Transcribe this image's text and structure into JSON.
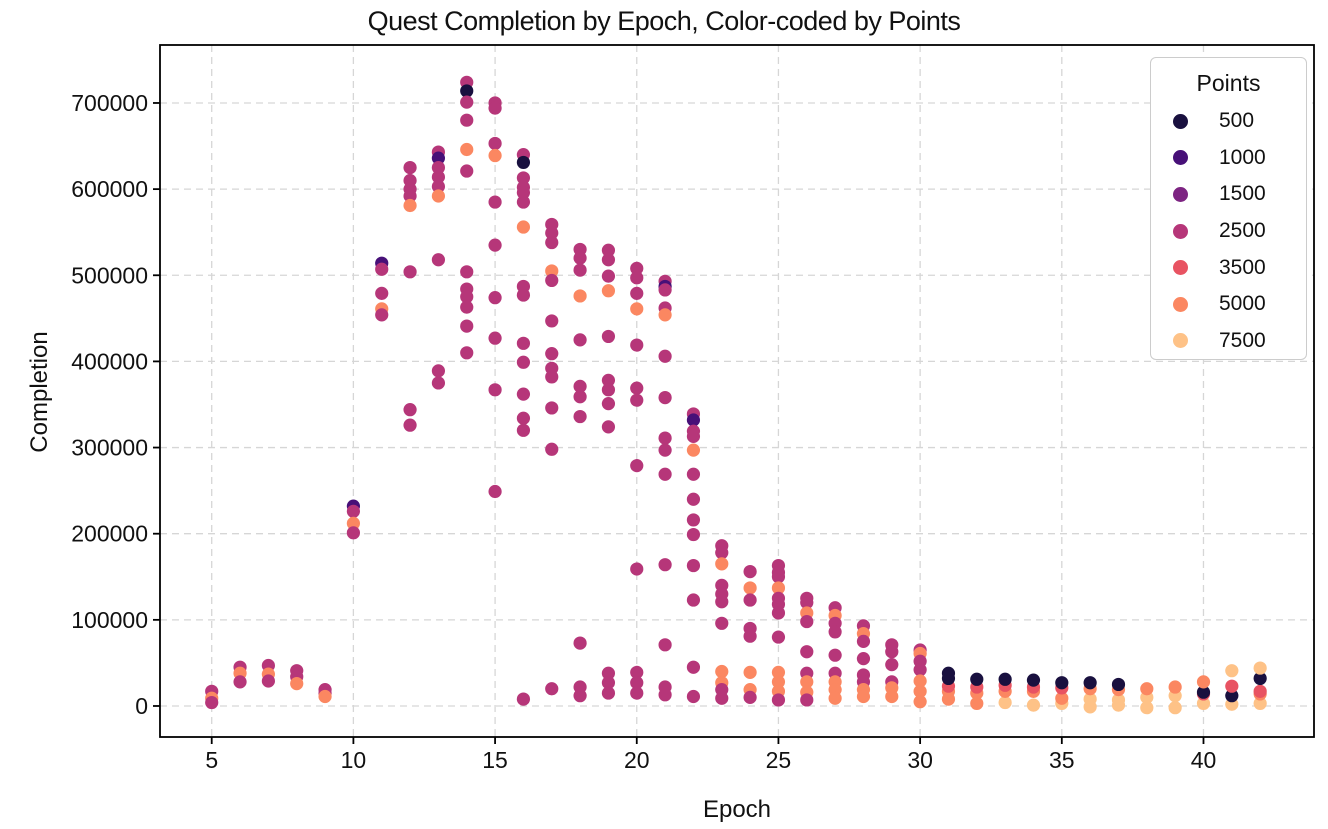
{
  "title": "Quest Completion by Epoch, Color-coded by Points",
  "xlabel": "Epoch",
  "ylabel": "Completion",
  "legend": {
    "title": "Points",
    "entries": [
      {
        "label": "500",
        "color": "#19103f"
      },
      {
        "label": "1000",
        "color": "#471078"
      },
      {
        "label": "1500",
        "color": "#7d2482"
      },
      {
        "label": "2500",
        "color": "#b63679"
      },
      {
        "label": "3500",
        "color": "#e85362"
      },
      {
        "label": "5000",
        "color": "#fb8761"
      },
      {
        "label": "7500",
        "color": "#fec287"
      }
    ]
  },
  "axes": {
    "x_ticks": [
      5,
      10,
      15,
      20,
      25,
      30,
      35,
      40
    ],
    "y_ticks": [
      0,
      100000,
      200000,
      300000,
      400000,
      500000,
      600000,
      700000
    ],
    "xlim": [
      3.175,
      43.9
    ],
    "ylim": [
      -36000,
      767300
    ],
    "grid": true,
    "grid_color": "#d6d6d6"
  },
  "chart_data": {
    "type": "scatter",
    "title": "Quest Completion by Epoch, Color-coded by Points",
    "xlabel": "Epoch",
    "ylabel": "Completion",
    "legend_title": "Points",
    "color_map": {
      "500": "#19103f",
      "1000": "#471078",
      "1500": "#7d2482",
      "2500": "#b63679",
      "3500": "#e85362",
      "5000": "#fb8761",
      "7500": "#fec287"
    },
    "format": [
      "epoch",
      "completion",
      "points"
    ],
    "points": [
      [
        5,
        17000,
        2500
      ],
      [
        5,
        9000,
        5000
      ],
      [
        5,
        4000,
        2500
      ],
      [
        6,
        45000,
        2500
      ],
      [
        6,
        38000,
        5000
      ],
      [
        6,
        28000,
        2500
      ],
      [
        7,
        47000,
        2500
      ],
      [
        7,
        37000,
        5000
      ],
      [
        7,
        29000,
        2500
      ],
      [
        8,
        41000,
        2500
      ],
      [
        8,
        34000,
        2500
      ],
      [
        8,
        26000,
        5000
      ],
      [
        9,
        19000,
        2500
      ],
      [
        9,
        15000,
        2500
      ],
      [
        9,
        11000,
        5000
      ],
      [
        10,
        232000,
        1000
      ],
      [
        10,
        226000,
        2500
      ],
      [
        10,
        212000,
        5000
      ],
      [
        10,
        201000,
        2500
      ],
      [
        11,
        514000,
        1000
      ],
      [
        11,
        507000,
        2500
      ],
      [
        11,
        479000,
        2500
      ],
      [
        11,
        461000,
        5000
      ],
      [
        11,
        454000,
        2500
      ],
      [
        12,
        625000,
        2500
      ],
      [
        12,
        610000,
        2500
      ],
      [
        12,
        600000,
        2500
      ],
      [
        12,
        592000,
        2500
      ],
      [
        12,
        581000,
        5000
      ],
      [
        12,
        504000,
        2500
      ],
      [
        12,
        344000,
        2500
      ],
      [
        12,
        326000,
        2500
      ],
      [
        13,
        643000,
        2500
      ],
      [
        13,
        636000,
        1000
      ],
      [
        13,
        625000,
        2500
      ],
      [
        13,
        614000,
        2500
      ],
      [
        13,
        603000,
        2500
      ],
      [
        13,
        592000,
        5000
      ],
      [
        13,
        518000,
        2500
      ],
      [
        13,
        389000,
        2500
      ],
      [
        13,
        375000,
        2500
      ],
      [
        14,
        724000,
        2500
      ],
      [
        14,
        714000,
        500
      ],
      [
        14,
        701000,
        2500
      ],
      [
        14,
        680000,
        2500
      ],
      [
        14,
        646000,
        5000
      ],
      [
        14,
        621000,
        2500
      ],
      [
        14,
        504000,
        2500
      ],
      [
        14,
        484000,
        2500
      ],
      [
        14,
        475000,
        2500
      ],
      [
        14,
        463000,
        2500
      ],
      [
        14,
        441000,
        2500
      ],
      [
        14,
        410000,
        2500
      ],
      [
        15,
        700000,
        2500
      ],
      [
        15,
        694000,
        2500
      ],
      [
        15,
        653000,
        2500
      ],
      [
        15,
        639000,
        5000
      ],
      [
        15,
        585000,
        2500
      ],
      [
        15,
        535000,
        2500
      ],
      [
        15,
        474000,
        2500
      ],
      [
        15,
        427000,
        2500
      ],
      [
        15,
        367000,
        2500
      ],
      [
        15,
        249000,
        2500
      ],
      [
        16,
        640000,
        2500
      ],
      [
        16,
        631000,
        500
      ],
      [
        16,
        613000,
        2500
      ],
      [
        16,
        602000,
        2500
      ],
      [
        16,
        596000,
        2500
      ],
      [
        16,
        585000,
        2500
      ],
      [
        16,
        556000,
        5000
      ],
      [
        16,
        487000,
        2500
      ],
      [
        16,
        477000,
        2500
      ],
      [
        16,
        421000,
        2500
      ],
      [
        16,
        399000,
        2500
      ],
      [
        16,
        362000,
        2500
      ],
      [
        16,
        334000,
        2500
      ],
      [
        16,
        320000,
        2500
      ],
      [
        16,
        8000,
        2500
      ],
      [
        17,
        559000,
        2500
      ],
      [
        17,
        549000,
        2500
      ],
      [
        17,
        538000,
        2500
      ],
      [
        17,
        505000,
        5000
      ],
      [
        17,
        494000,
        2500
      ],
      [
        17,
        447000,
        2500
      ],
      [
        17,
        409000,
        2500
      ],
      [
        17,
        392000,
        2500
      ],
      [
        17,
        382000,
        2500
      ],
      [
        17,
        346000,
        2500
      ],
      [
        17,
        298000,
        2500
      ],
      [
        17,
        20000,
        2500
      ],
      [
        18,
        530000,
        2500
      ],
      [
        18,
        520000,
        2500
      ],
      [
        18,
        506000,
        2500
      ],
      [
        18,
        476000,
        5000
      ],
      [
        18,
        425000,
        2500
      ],
      [
        18,
        371000,
        2500
      ],
      [
        18,
        359000,
        2500
      ],
      [
        18,
        336000,
        2500
      ],
      [
        18,
        73000,
        2500
      ],
      [
        18,
        22000,
        2500
      ],
      [
        18,
        12000,
        2500
      ],
      [
        19,
        529000,
        2500
      ],
      [
        19,
        518000,
        2500
      ],
      [
        19,
        499000,
        2500
      ],
      [
        19,
        482000,
        5000
      ],
      [
        19,
        429000,
        2500
      ],
      [
        19,
        378000,
        2500
      ],
      [
        19,
        367000,
        2500
      ],
      [
        19,
        351000,
        2500
      ],
      [
        19,
        324000,
        2500
      ],
      [
        19,
        38000,
        2500
      ],
      [
        19,
        27000,
        2500
      ],
      [
        19,
        15000,
        2500
      ],
      [
        20,
        508000,
        2500
      ],
      [
        20,
        497000,
        2500
      ],
      [
        20,
        479000,
        2500
      ],
      [
        20,
        461000,
        5000
      ],
      [
        20,
        419000,
        2500
      ],
      [
        20,
        369000,
        2500
      ],
      [
        20,
        355000,
        2500
      ],
      [
        20,
        279000,
        2500
      ],
      [
        20,
        159000,
        2500
      ],
      [
        20,
        39000,
        2500
      ],
      [
        20,
        27000,
        2500
      ],
      [
        20,
        15000,
        2500
      ],
      [
        21,
        493000,
        2500
      ],
      [
        21,
        487000,
        1000
      ],
      [
        21,
        483000,
        2500
      ],
      [
        21,
        462000,
        2500
      ],
      [
        21,
        454000,
        5000
      ],
      [
        21,
        406000,
        2500
      ],
      [
        21,
        358000,
        2500
      ],
      [
        21,
        311000,
        2500
      ],
      [
        21,
        297000,
        2500
      ],
      [
        21,
        269000,
        2500
      ],
      [
        21,
        164000,
        2500
      ],
      [
        21,
        71000,
        2500
      ],
      [
        21,
        22000,
        2500
      ],
      [
        21,
        13000,
        2500
      ],
      [
        22,
        339000,
        2500
      ],
      [
        22,
        332000,
        1000
      ],
      [
        22,
        319000,
        2500
      ],
      [
        22,
        313000,
        2500
      ],
      [
        22,
        297000,
        5000
      ],
      [
        22,
        269000,
        2500
      ],
      [
        22,
        240000,
        2500
      ],
      [
        22,
        216000,
        2500
      ],
      [
        22,
        199000,
        2500
      ],
      [
        22,
        163000,
        2500
      ],
      [
        22,
        123000,
        2500
      ],
      [
        22,
        45000,
        2500
      ],
      [
        22,
        11000,
        2500
      ],
      [
        23,
        186000,
        2500
      ],
      [
        23,
        178000,
        2500
      ],
      [
        23,
        165000,
        5000
      ],
      [
        23,
        140000,
        2500
      ],
      [
        23,
        130000,
        2500
      ],
      [
        23,
        121000,
        2500
      ],
      [
        23,
        96000,
        2500
      ],
      [
        23,
        40000,
        5000
      ],
      [
        23,
        27000,
        5000
      ],
      [
        23,
        19000,
        2500
      ],
      [
        23,
        9000,
        2500
      ],
      [
        24,
        156000,
        2500
      ],
      [
        24,
        137000,
        5000
      ],
      [
        24,
        123000,
        2500
      ],
      [
        24,
        90000,
        2500
      ],
      [
        24,
        81000,
        2500
      ],
      [
        24,
        39000,
        5000
      ],
      [
        24,
        19000,
        5000
      ],
      [
        24,
        10000,
        2500
      ],
      [
        25,
        163000,
        2500
      ],
      [
        25,
        155000,
        2500
      ],
      [
        25,
        150000,
        2500
      ],
      [
        25,
        137000,
        5000
      ],
      [
        25,
        125000,
        2500
      ],
      [
        25,
        118000,
        2500
      ],
      [
        25,
        108000,
        2500
      ],
      [
        25,
        80000,
        2500
      ],
      [
        25,
        39000,
        5000
      ],
      [
        25,
        28000,
        5000
      ],
      [
        25,
        17000,
        5000
      ],
      [
        25,
        7000,
        2500
      ],
      [
        26,
        125000,
        2500
      ],
      [
        26,
        120000,
        2500
      ],
      [
        26,
        108000,
        5000
      ],
      [
        26,
        98000,
        2500
      ],
      [
        26,
        63000,
        2500
      ],
      [
        26,
        38000,
        2500
      ],
      [
        26,
        28000,
        5000
      ],
      [
        26,
        16000,
        5000
      ],
      [
        26,
        7000,
        2500
      ],
      [
        27,
        114000,
        2500
      ],
      [
        27,
        105000,
        5000
      ],
      [
        27,
        96000,
        2500
      ],
      [
        27,
        86000,
        2500
      ],
      [
        27,
        59000,
        2500
      ],
      [
        27,
        38000,
        2500
      ],
      [
        27,
        28000,
        5000
      ],
      [
        27,
        19000,
        5000
      ],
      [
        27,
        9000,
        5000
      ],
      [
        28,
        93000,
        2500
      ],
      [
        28,
        84000,
        5000
      ],
      [
        28,
        75000,
        2500
      ],
      [
        28,
        55000,
        2500
      ],
      [
        28,
        36000,
        2500
      ],
      [
        28,
        28000,
        2500
      ],
      [
        28,
        19000,
        5000
      ],
      [
        28,
        11000,
        5000
      ],
      [
        29,
        71000,
        2500
      ],
      [
        29,
        63000,
        2500
      ],
      [
        29,
        48000,
        2500
      ],
      [
        29,
        28000,
        2500
      ],
      [
        29,
        21000,
        5000
      ],
      [
        29,
        11000,
        5000
      ],
      [
        30,
        65000,
        2500
      ],
      [
        30,
        61000,
        5000
      ],
      [
        30,
        52000,
        2500
      ],
      [
        30,
        42000,
        2500
      ],
      [
        30,
        29000,
        5000
      ],
      [
        30,
        17000,
        5000
      ],
      [
        30,
        5000,
        5000
      ],
      [
        31,
        8000,
        5000
      ],
      [
        31,
        17000,
        5000
      ],
      [
        31,
        23000,
        3500
      ],
      [
        31,
        32000,
        500
      ],
      [
        31,
        38000,
        500
      ],
      [
        32,
        3000,
        5000
      ],
      [
        32,
        15000,
        5000
      ],
      [
        32,
        22000,
        3500
      ],
      [
        32,
        31000,
        500
      ],
      [
        33,
        4000,
        7500
      ],
      [
        33,
        17000,
        5000
      ],
      [
        33,
        24000,
        3500
      ],
      [
        33,
        31000,
        500
      ],
      [
        34,
        1000,
        7500
      ],
      [
        34,
        17000,
        5000
      ],
      [
        34,
        22000,
        3500
      ],
      [
        34,
        30000,
        500
      ],
      [
        35,
        3000,
        7500
      ],
      [
        35,
        9000,
        5000
      ],
      [
        35,
        21000,
        3500
      ],
      [
        35,
        27000,
        500
      ],
      [
        36,
        -1000,
        7500
      ],
      [
        36,
        8000,
        7500
      ],
      [
        36,
        20000,
        5000
      ],
      [
        36,
        27000,
        500
      ],
      [
        37,
        1000,
        7500
      ],
      [
        37,
        7000,
        7500
      ],
      [
        37,
        19000,
        5000
      ],
      [
        37,
        25000,
        500
      ],
      [
        38,
        -2000,
        7500
      ],
      [
        38,
        10000,
        7500
      ],
      [
        38,
        20000,
        5000
      ],
      [
        39,
        -2000,
        7500
      ],
      [
        39,
        12000,
        7500
      ],
      [
        39,
        22000,
        5000
      ],
      [
        40,
        3000,
        7500
      ],
      [
        40,
        14000,
        3500
      ],
      [
        40,
        16000,
        500
      ],
      [
        40,
        28000,
        5000
      ],
      [
        41,
        2000,
        7500
      ],
      [
        41,
        12000,
        500
      ],
      [
        41,
        23000,
        3500
      ],
      [
        41,
        41000,
        7500
      ],
      [
        42,
        3000,
        7500
      ],
      [
        42,
        14000,
        5000
      ],
      [
        42,
        17000,
        3500
      ],
      [
        42,
        32000,
        500
      ],
      [
        42,
        44000,
        7500
      ]
    ]
  }
}
